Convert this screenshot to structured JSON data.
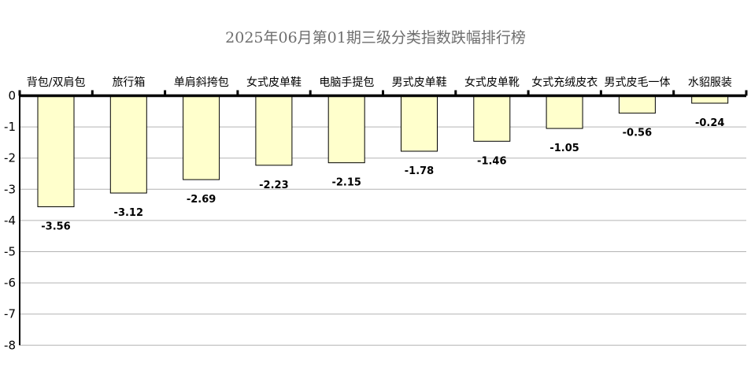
{
  "chart_data": {
    "type": "bar",
    "title": "2025年06月第01期三级分类指数跌幅排行榜",
    "categories": [
      "背包/双肩包",
      "旅行箱",
      "单肩斜挎包",
      "女式皮单鞋",
      "电脑手提包",
      "男式皮单鞋",
      "女式皮单靴",
      "女式充绒皮衣",
      "男式皮毛一体",
      "水貂服装"
    ],
    "values": [
      -3.56,
      -3.12,
      -2.69,
      -2.23,
      -2.15,
      -1.78,
      -1.46,
      -1.05,
      -0.56,
      -0.24
    ],
    "value_labels": [
      "-3.56",
      "-3.12",
      "-2.69",
      "-2.23",
      "-2.15",
      "-1.78",
      "-1.46",
      "-1.05",
      "-0.56",
      "-0.24"
    ],
    "yticks": [
      "0",
      "-1",
      "-2",
      "-3",
      "-4",
      "-5",
      "-6",
      "-7",
      "-8"
    ],
    "ylim": [
      -8,
      0
    ],
    "xlabel": "",
    "ylabel": "",
    "grid": true,
    "legend": "none",
    "colors": {
      "bar_fill": "#ffffcc",
      "bar_stroke": "#000000",
      "grid": "#b4b4b4",
      "axis": "#000000",
      "title": "#6e6e6e"
    }
  }
}
